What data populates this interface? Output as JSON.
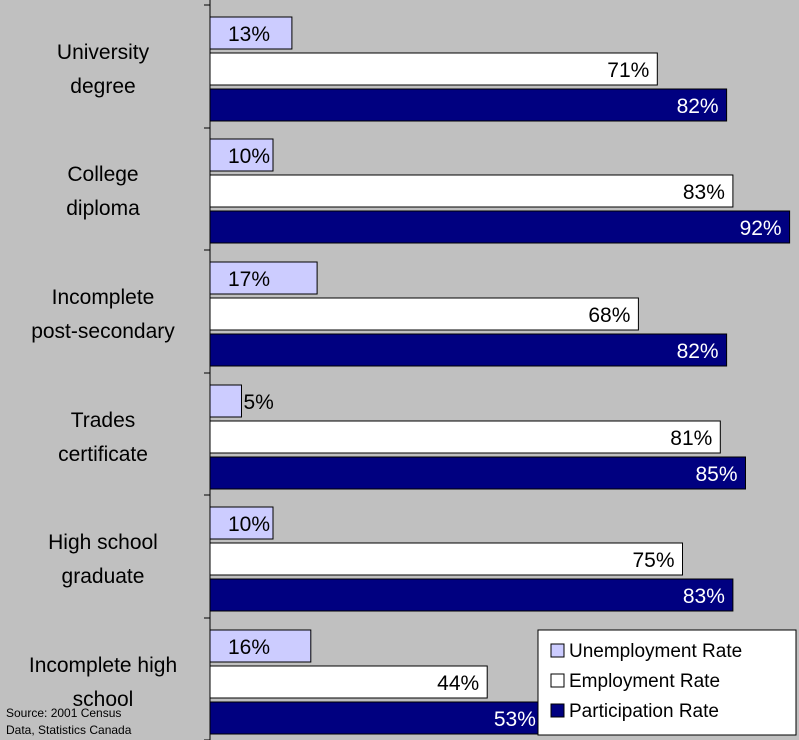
{
  "chart_data": {
    "type": "bar",
    "orientation": "horizontal",
    "categories": [
      [
        "University",
        "degree"
      ],
      [
        "College",
        "diploma"
      ],
      [
        "Incomplete",
        "post-secondary"
      ],
      [
        "Trades",
        "certificate"
      ],
      [
        "High school",
        "graduate"
      ],
      [
        "Incomplete high",
        "school"
      ]
    ],
    "series": [
      {
        "name": "Unemployment Rate",
        "values": [
          13,
          10,
          17,
          5,
          10,
          16
        ],
        "labels": [
          "13%",
          "10%",
          "17%",
          "5%",
          "10%",
          "16%"
        ],
        "color": "#ccccff"
      },
      {
        "name": "Employment Rate",
        "values": [
          71,
          83,
          68,
          81,
          75,
          44
        ],
        "labels": [
          "71%",
          "83%",
          "68%",
          "81%",
          "75%",
          "44%"
        ],
        "color": "#ffffff"
      },
      {
        "name": "Participation Rate",
        "values": [
          82,
          92,
          82,
          85,
          83,
          53
        ],
        "labels": [
          "82%",
          "92%",
          "82%",
          "85%",
          "83%",
          "53%"
        ],
        "color": "#000080"
      }
    ],
    "legend_position": "bottom-right",
    "grid": false
  },
  "source_note": [
    "Source: 2001 Census",
    "Data, Statistics Canada"
  ]
}
